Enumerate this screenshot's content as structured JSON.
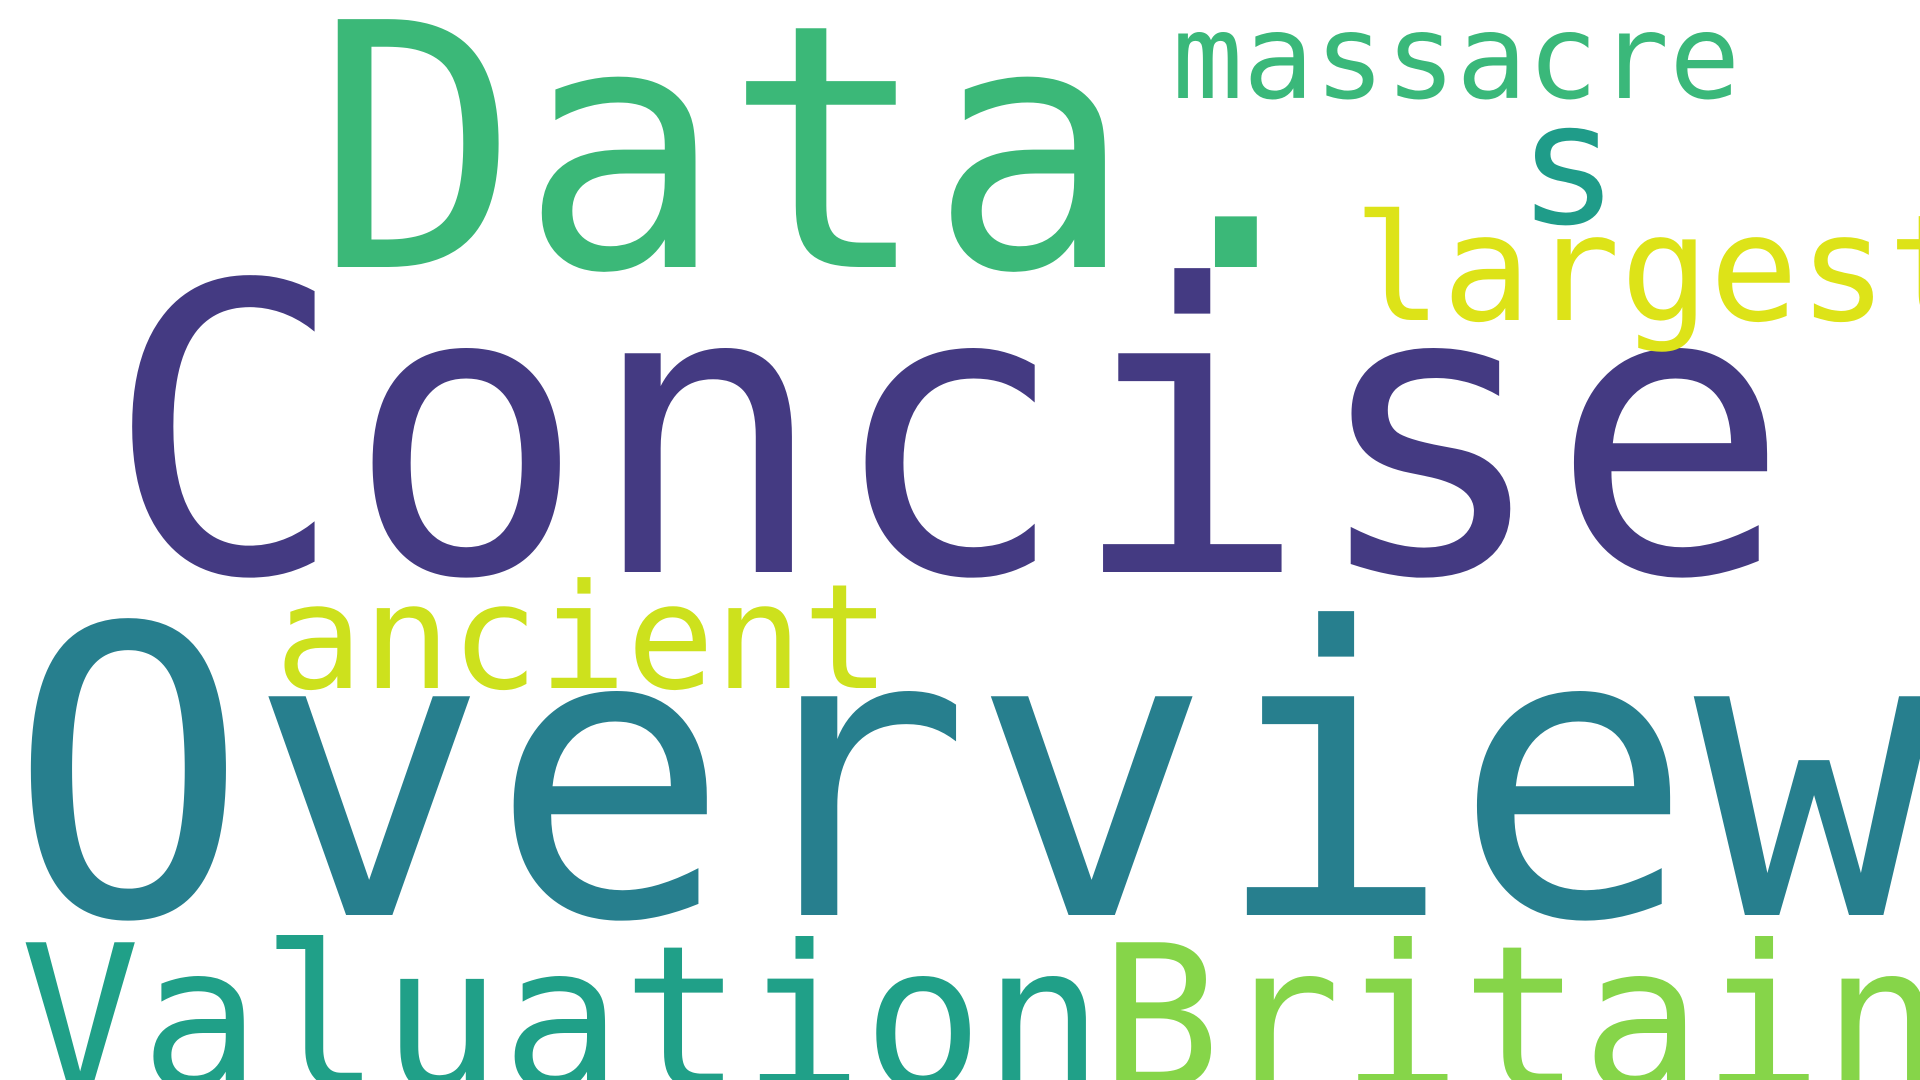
{
  "words": {
    "data": {
      "text": "Data.",
      "color": "#3bb878"
    },
    "concise": {
      "text": "Concise",
      "color": "#443a82"
    },
    "overview": {
      "text": "Overview",
      "color": "#277f8e"
    },
    "valuation": {
      "text": "Valuation",
      "color": "#20a088"
    },
    "britain": {
      "text": "Britain",
      "color": "#86d549"
    },
    "massacre": {
      "text": "massacre",
      "color": "#3ab87a"
    },
    "s": {
      "text": "s",
      "color": "#1f9c89"
    },
    "largest": {
      "text": "largest",
      "color": "#dde318"
    },
    "ancient": {
      "text": "ancient",
      "color": "#cde11d"
    }
  }
}
